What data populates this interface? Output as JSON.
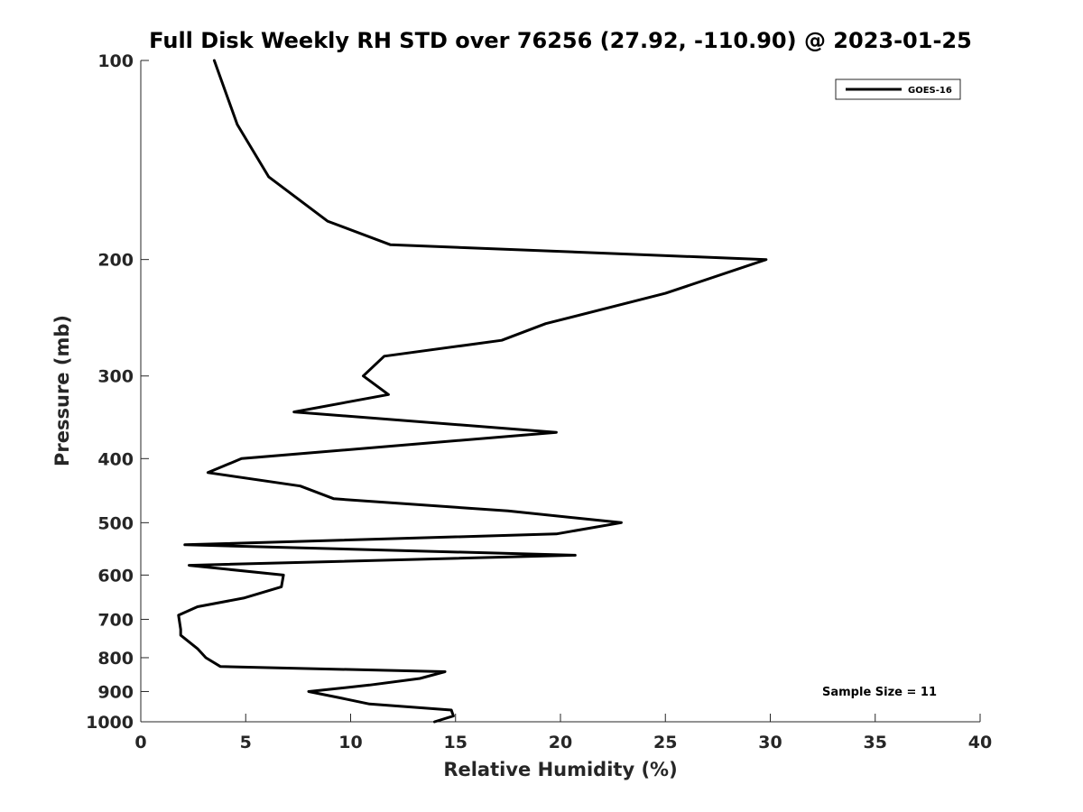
{
  "chart_data": {
    "type": "line",
    "title": "Full Disk Weekly RH STD over 76256 (27.92, -110.90) @ 2023-01-25",
    "xlabel": "Relative Humidity (%)",
    "ylabel": "Pressure (mb)",
    "xlim": [
      0,
      40
    ],
    "ylim": [
      100,
      1000
    ],
    "y_scale": "log",
    "y_direction": "reversed",
    "grid": false,
    "legend_placement": "top-right",
    "x_ticks": [
      "0",
      "5",
      "10",
      "15",
      "20",
      "25",
      "30",
      "35",
      "40"
    ],
    "y_ticks": [
      "100",
      "200",
      "300",
      "400",
      "500",
      "600",
      "700",
      "800",
      "900",
      "1000"
    ],
    "series": [
      {
        "name": "GOES-16",
        "color": "#000000",
        "points": [
          [
            3.5,
            100
          ],
          [
            4.6,
            125
          ],
          [
            6.1,
            150
          ],
          [
            8.9,
            175
          ],
          [
            11.9,
            190
          ],
          [
            29.8,
            200
          ],
          [
            25.0,
            225
          ],
          [
            19.3,
            250
          ],
          [
            17.2,
            265
          ],
          [
            11.6,
            280
          ],
          [
            10.6,
            300
          ],
          [
            11.8,
            320
          ],
          [
            7.3,
            340
          ],
          [
            19.8,
            365
          ],
          [
            4.8,
            400
          ],
          [
            3.2,
            420
          ],
          [
            7.6,
            440
          ],
          [
            9.2,
            460
          ],
          [
            17.5,
            480
          ],
          [
            22.9,
            500
          ],
          [
            19.8,
            520
          ],
          [
            2.1,
            540
          ],
          [
            20.7,
            560
          ],
          [
            2.3,
            580
          ],
          [
            6.8,
            600
          ],
          [
            6.7,
            625
          ],
          [
            4.9,
            650
          ],
          [
            2.7,
            670
          ],
          [
            1.8,
            690
          ],
          [
            1.9,
            725
          ],
          [
            1.9,
            740
          ],
          [
            2.7,
            775
          ],
          [
            3.1,
            800
          ],
          [
            3.8,
            825
          ],
          [
            14.5,
            840
          ],
          [
            13.3,
            860
          ],
          [
            10.9,
            880
          ],
          [
            8.0,
            900
          ],
          [
            9.5,
            920
          ],
          [
            10.9,
            940
          ],
          [
            14.8,
            960
          ],
          [
            14.9,
            980
          ],
          [
            14.0,
            1000
          ]
        ]
      }
    ],
    "legend": {
      "entries": [
        "GOES-16"
      ]
    },
    "annotations": [
      {
        "text": "Sample Size = 11"
      }
    ]
  }
}
